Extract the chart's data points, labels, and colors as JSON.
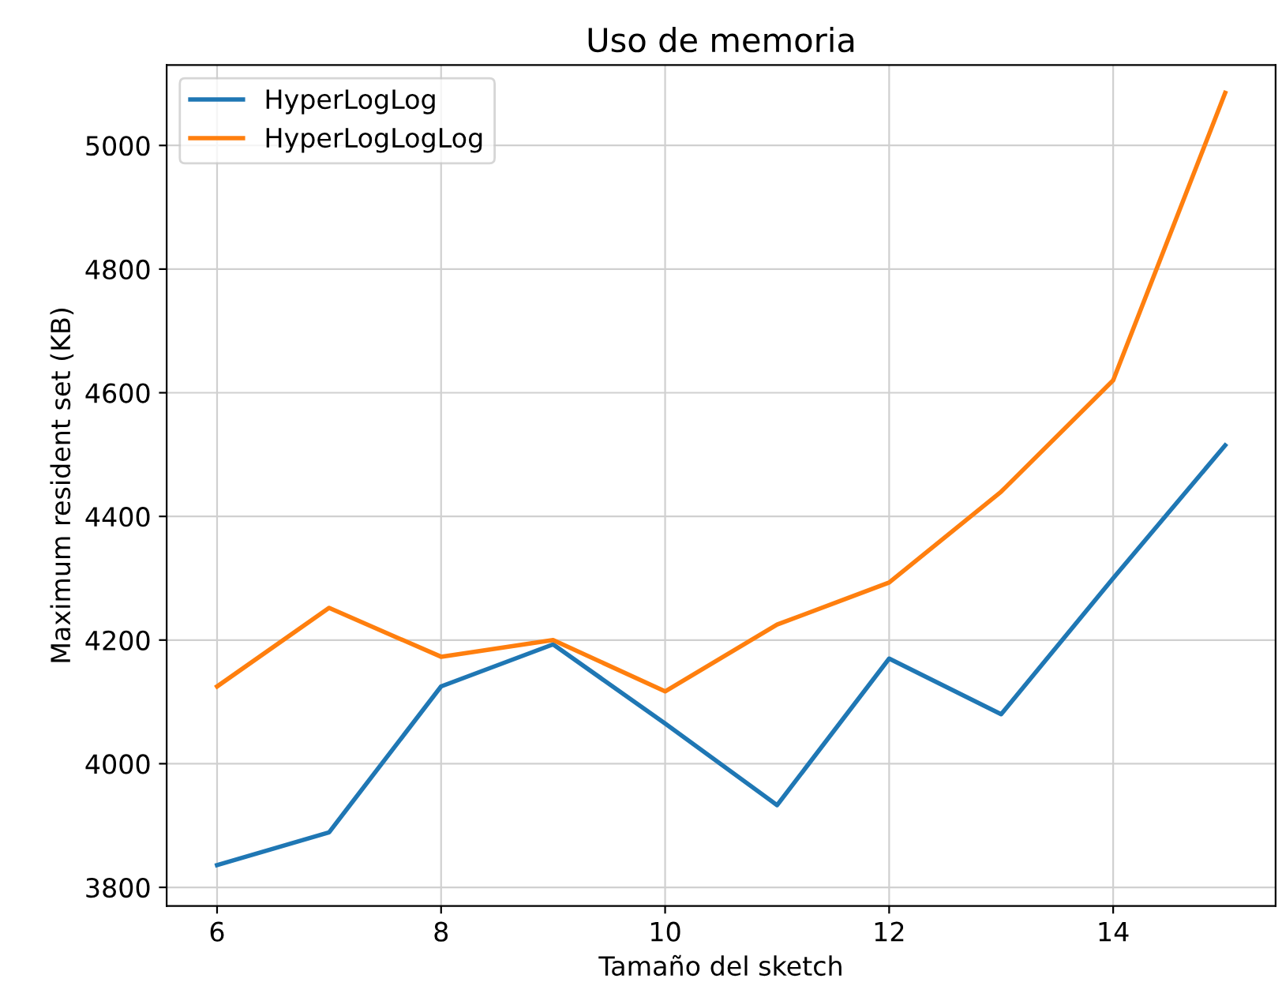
{
  "chart_data": {
    "type": "line",
    "title": "Uso de memoria",
    "xlabel": "Tamaño del sketch",
    "ylabel": "Maximum resident set (KB)",
    "x": [
      6,
      7,
      8,
      9,
      10,
      11,
      12,
      13,
      14,
      15
    ],
    "series": [
      {
        "name": "HyperLogLog",
        "color": "#1f77b4",
        "values": [
          3836,
          3889,
          4125,
          4193,
          4065,
          3933,
          4170,
          4080,
          4300,
          4515
        ]
      },
      {
        "name": "HyperLogLogLog",
        "color": "#ff7f0e",
        "values": [
          4125,
          4252,
          4173,
          4200,
          4117,
          4225,
          4293,
          4440,
          4620,
          5085
        ]
      }
    ],
    "xlim": [
      5.55,
      15.45
    ],
    "ylim": [
      3770,
      5130
    ],
    "xticks": [
      6,
      8,
      10,
      12,
      14
    ],
    "yticks": [
      3800,
      4000,
      4200,
      4400,
      4600,
      4800,
      5000
    ],
    "grid": true,
    "legend": "top left",
    "line_style": "solid",
    "marker": "none"
  }
}
